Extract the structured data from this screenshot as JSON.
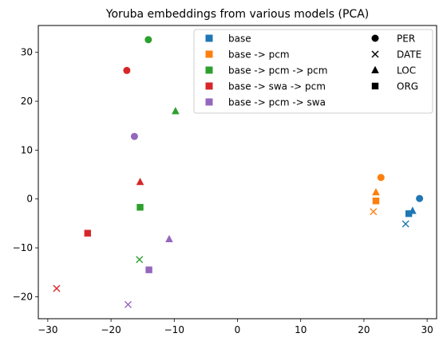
{
  "chart_data": {
    "type": "scatter",
    "title": "Yoruba embeddings from various models (PCA)",
    "xlabel": "",
    "ylabel": "",
    "xlim": [
      -31.5,
      31.5
    ],
    "ylim": [
      -24.5,
      35.5
    ],
    "xticks": [
      -30,
      -20,
      -10,
      0,
      10,
      20,
      30
    ],
    "yticks": [
      -20,
      -10,
      0,
      10,
      20,
      30
    ],
    "grid": false,
    "legend_position": "top-right",
    "series": [
      {
        "name": "base",
        "color": "#1f77b4",
        "points": [
          {
            "label": "PER",
            "x": 28.8,
            "y": 0.1
          },
          {
            "label": "DATE",
            "x": 26.6,
            "y": -5.1
          },
          {
            "label": "LOC",
            "x": 27.7,
            "y": -2.4
          },
          {
            "label": "ORG",
            "x": 27.1,
            "y": -3.0
          }
        ]
      },
      {
        "name": "base -> pcm",
        "color": "#ff7f0e",
        "points": [
          {
            "label": "PER",
            "x": 22.7,
            "y": 4.4
          },
          {
            "label": "DATE",
            "x": 21.5,
            "y": -2.6
          },
          {
            "label": "LOC",
            "x": 21.9,
            "y": 1.4
          },
          {
            "label": "ORG",
            "x": 21.9,
            "y": -0.4
          }
        ]
      },
      {
        "name": "base -> pcm -> pcm",
        "color": "#2ca02c",
        "points": [
          {
            "label": "PER",
            "x": -14.1,
            "y": 32.6
          },
          {
            "label": "DATE",
            "x": -15.5,
            "y": -12.4
          },
          {
            "label": "LOC",
            "x": -9.8,
            "y": 18.0
          },
          {
            "label": "ORG",
            "x": -15.4,
            "y": -1.7
          }
        ]
      },
      {
        "name": "base -> swa -> pcm",
        "color": "#d62728",
        "points": [
          {
            "label": "PER",
            "x": -17.5,
            "y": 26.3
          },
          {
            "label": "DATE",
            "x": -28.6,
            "y": -18.3
          },
          {
            "label": "LOC",
            "x": -15.4,
            "y": 3.5
          },
          {
            "label": "ORG",
            "x": -23.7,
            "y": -7.0
          }
        ]
      },
      {
        "name": "base -> pcm -> swa",
        "color": "#9467bd",
        "points": [
          {
            "label": "PER",
            "x": -16.3,
            "y": 12.8
          },
          {
            "label": "DATE",
            "x": -17.3,
            "y": -21.6
          },
          {
            "label": "LOC",
            "x": -10.8,
            "y": -8.2
          },
          {
            "label": "ORG",
            "x": -14.0,
            "y": -14.5
          }
        ]
      }
    ],
    "marker_legend": [
      {
        "label": "PER",
        "marker": "circle"
      },
      {
        "label": "DATE",
        "marker": "x"
      },
      {
        "label": "LOC",
        "marker": "triangle"
      },
      {
        "label": "ORG",
        "marker": "square"
      }
    ]
  }
}
